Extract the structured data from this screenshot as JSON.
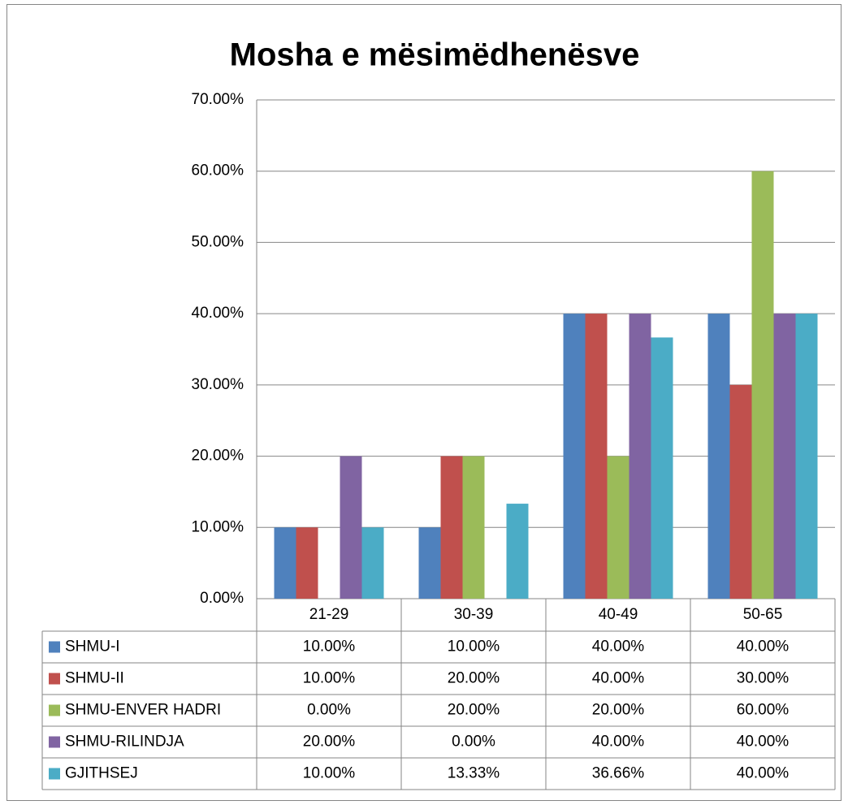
{
  "chart_data": {
    "type": "bar",
    "title": "Mosha e mësimëdhenësve",
    "categories": [
      "21-29",
      "30-39",
      "40-49",
      "50-65"
    ],
    "series": [
      {
        "name": "SHMU-I",
        "color": "#4f81bd",
        "values": [
          10,
          10,
          40,
          40
        ],
        "value_labels": [
          "10.00%",
          "10.00%",
          "40.00%",
          "40.00%"
        ]
      },
      {
        "name": "SHMU-II",
        "color": "#c0504d",
        "values": [
          10,
          20,
          40,
          30
        ],
        "value_labels": [
          "10.00%",
          "20.00%",
          "40.00%",
          "30.00%"
        ]
      },
      {
        "name": "SHMU-ENVER HADRI",
        "color": "#9bbb59",
        "values": [
          0,
          20,
          20,
          60
        ],
        "value_labels": [
          "0.00%",
          "20.00%",
          "20.00%",
          "60.00%"
        ]
      },
      {
        "name": "SHMU-RILINDJA",
        "color": "#8064a2",
        "values": [
          20,
          0,
          40,
          40
        ],
        "value_labels": [
          "20.00%",
          "0.00%",
          "40.00%",
          "40.00%"
        ]
      },
      {
        "name": "GJITHSEJ",
        "color": "#4bacc6",
        "values": [
          10,
          13.33,
          36.66,
          40
        ],
        "value_labels": [
          "10.00%",
          "13.33%",
          "36.66%",
          "40.00%"
        ]
      }
    ],
    "ylim": [
      0,
      70
    ],
    "yticks": [
      {
        "value": 0,
        "label": "0.00%"
      },
      {
        "value": 10,
        "label": "10.00%"
      },
      {
        "value": 20,
        "label": "20.00%"
      },
      {
        "value": 30,
        "label": "30.00%"
      },
      {
        "value": 40,
        "label": "40.00%"
      },
      {
        "value": 50,
        "label": "50.00%"
      },
      {
        "value": 60,
        "label": "60.00%"
      },
      {
        "value": 70,
        "label": "70.00%"
      }
    ],
    "grid": true
  }
}
